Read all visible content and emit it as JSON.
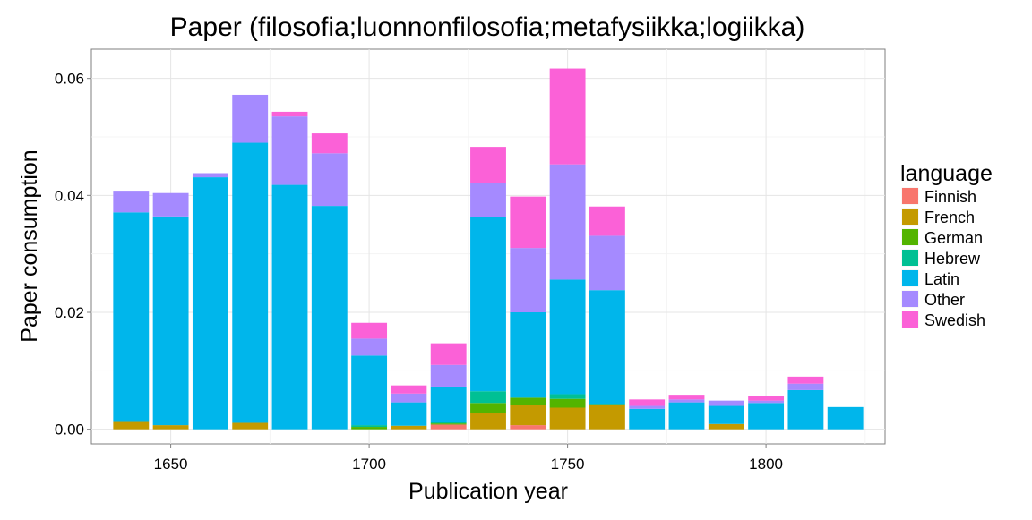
{
  "chart_data": {
    "type": "bar",
    "stacked": true,
    "title": "Paper (filosofia;luonnonfilosofia;metafysiikka;logiikka)",
    "xlabel": "Publication year",
    "ylabel": "Paper consumption",
    "xlim": [
      1630,
      1830
    ],
    "ylim": [
      -0.0025,
      0.065
    ],
    "x_ticks": [
      1650,
      1700,
      1750,
      1800
    ],
    "x_tick_labels": [
      "1650",
      "1700",
      "1750",
      "1800"
    ],
    "y_ticks": [
      0,
      0.02,
      0.04,
      0.06
    ],
    "y_tick_labels": [
      "0.00",
      "0.02",
      "0.04",
      "0.06"
    ],
    "bar_width": 9,
    "grid": true,
    "legend_position": "right",
    "legend_title": "language",
    "x": [
      1640,
      1650,
      1660,
      1670,
      1680,
      1690,
      1700,
      1710,
      1720,
      1730,
      1740,
      1750,
      1760,
      1770,
      1780,
      1790,
      1800,
      1810,
      1820
    ],
    "series": [
      {
        "name": "Finnish",
        "color": "#F8766D",
        "values": [
          0,
          0,
          0,
          0,
          0,
          0,
          0,
          0,
          0.0008,
          0,
          0.0007,
          0,
          0,
          0,
          0,
          0,
          0,
          0,
          0
        ]
      },
      {
        "name": "French",
        "color": "#C49A00",
        "values": [
          0.0014,
          0.0007,
          0,
          0.0011,
          0,
          0,
          0,
          0.0006,
          0,
          0.0028,
          0.0035,
          0.0037,
          0.0041,
          0,
          0,
          0.0009,
          0,
          0,
          0
        ]
      },
      {
        "name": "German",
        "color": "#53B400",
        "values": [
          0,
          0,
          0,
          0,
          0,
          0,
          0.0004,
          0,
          0.0002,
          0.0017,
          0.0012,
          0.0015,
          0.0002,
          0,
          0,
          0,
          0,
          0,
          0
        ]
      },
      {
        "name": "Hebrew",
        "color": "#00C094",
        "values": [
          0,
          0,
          0,
          0,
          0,
          0,
          0.0003,
          0,
          0.0002,
          0.002,
          0,
          0.0008,
          0,
          0,
          0,
          0,
          0,
          0,
          0
        ]
      },
      {
        "name": "Latin",
        "color": "#00B6EB",
        "values": [
          0.0357,
          0.0357,
          0.0431,
          0.0479,
          0.0418,
          0.0382,
          0.0119,
          0.004,
          0.0061,
          0.0298,
          0.0146,
          0.0196,
          0.0195,
          0.0035,
          0.0046,
          0.0031,
          0.0045,
          0.0067,
          0.0038
        ]
      },
      {
        "name": "Other",
        "color": "#A58AFF",
        "values": [
          0.0037,
          0.004,
          0.0007,
          0.0082,
          0.0117,
          0.009,
          0.0029,
          0.0015,
          0.0037,
          0.0058,
          0.011,
          0.0197,
          0.0093,
          0.0005,
          0.0005,
          0.0009,
          0.0004,
          0.0011,
          0
        ]
      },
      {
        "name": "Swedish",
        "color": "#FB61D7",
        "values": [
          0,
          0,
          0,
          0,
          0.0008,
          0.0034,
          0.0027,
          0.0014,
          0.0037,
          0.0062,
          0.0088,
          0.0164,
          0.005,
          0.0011,
          0.0008,
          0,
          0.0008,
          0.0012,
          0
        ]
      }
    ]
  }
}
